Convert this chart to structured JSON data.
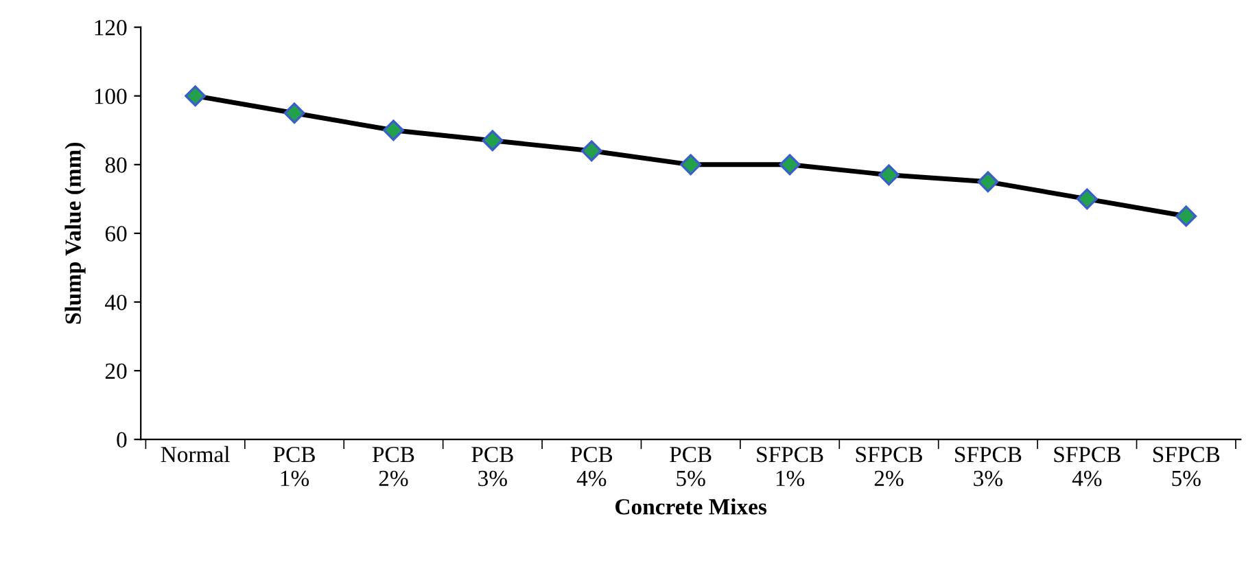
{
  "chart_data": {
    "type": "line",
    "xlabel": "Concrete Mixes",
    "ylabel": "Slump Value (mm)",
    "categories": [
      "Normal",
      "PCB\n1%",
      "PCB\n2%",
      "PCB\n3%",
      "PCB\n4%",
      "PCB\n5%",
      "SFPCB\n1%",
      "SFPCB\n2%",
      "SFPCB\n3%",
      "SFPCB\n4%",
      "SFPCB\n5%"
    ],
    "series": [
      {
        "color": "#000000",
        "values": [
          100,
          95,
          90,
          87,
          84,
          80,
          80,
          77,
          75,
          70,
          65
        ]
      }
    ],
    "marker": "diamond",
    "line_style": "solid",
    "ylim": [
      0,
      120
    ],
    "yticks": [
      0,
      20,
      40,
      60,
      80,
      100,
      120
    ],
    "grid": false,
    "legend": false
  }
}
